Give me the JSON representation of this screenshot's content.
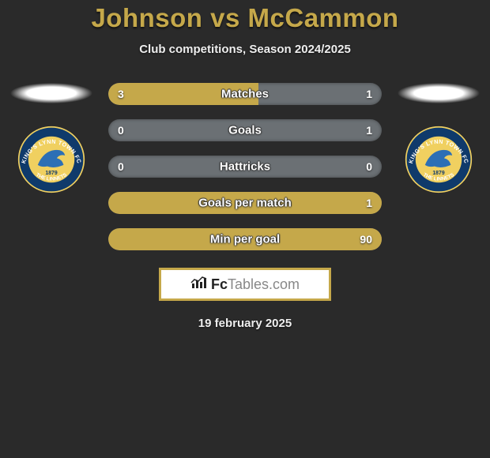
{
  "title_parts": [
    "Johnson",
    "vs",
    "McCammon"
  ],
  "subtitle": "Club competitions, Season 2024/2025",
  "date": "19 february 2025",
  "colors": {
    "accent": "#c5a84a",
    "bar_bg": "#6b7074",
    "page_bg": "#2a2a2a",
    "badge_outer": "#0f3a6b",
    "badge_inner": "#f0d060",
    "badge_bird": "#2c6fb5"
  },
  "logo": {
    "mark": "📊",
    "text_a": "Fc",
    "text_b": "Tables",
    "text_c": ".com"
  },
  "bars": [
    {
      "label": "Matches",
      "left_val": "3",
      "right_val": "1",
      "left_pct": 55,
      "right_pct": 0
    },
    {
      "label": "Goals",
      "left_val": "0",
      "right_val": "1",
      "left_pct": 0,
      "right_pct": 0
    },
    {
      "label": "Hattricks",
      "left_val": "0",
      "right_val": "0",
      "left_pct": 0,
      "right_pct": 0
    },
    {
      "label": "Goals per match",
      "left_val": "",
      "right_val": "1",
      "left_pct": 100,
      "right_pct": 0
    },
    {
      "label": "Min per goal",
      "left_val": "",
      "right_val": "90",
      "left_pct": 100,
      "right_pct": 0
    }
  ],
  "badge": {
    "club": "KING'S LYNN TOWN FC",
    "motto": "THE LINNETS",
    "year": "1879"
  }
}
